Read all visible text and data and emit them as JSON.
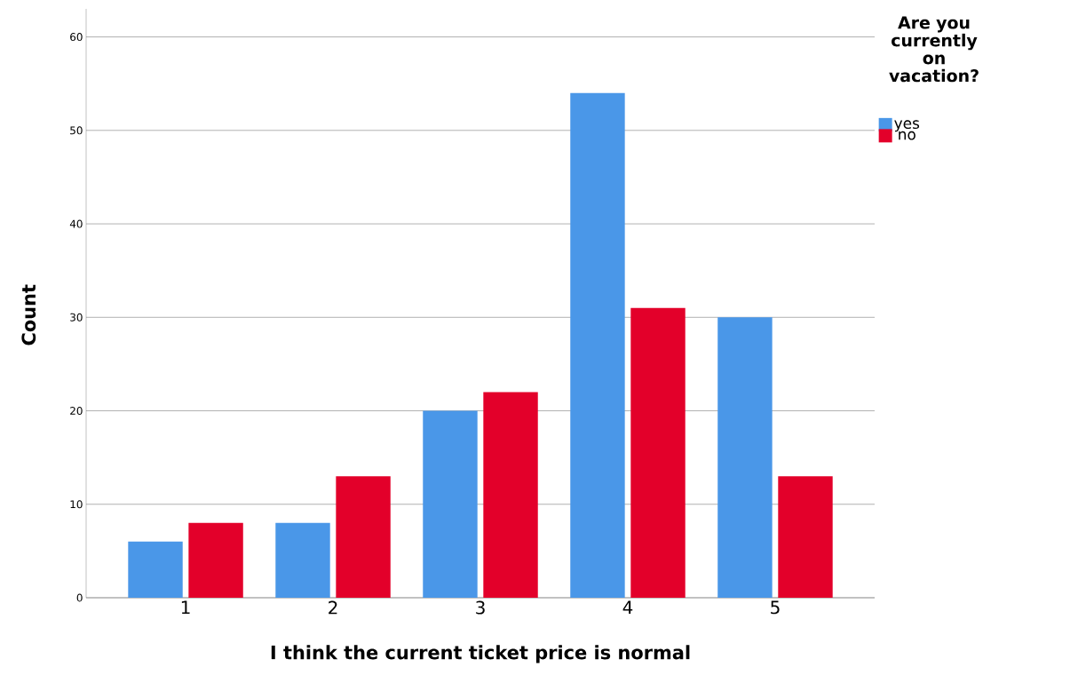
{
  "chart_data": {
    "type": "bar",
    "xlabel": "I think the current ticket price is normal",
    "ylabel": "Count",
    "legend_title": "Are you currently on vacation?",
    "categories": [
      "1",
      "2",
      "3",
      "4",
      "5"
    ],
    "series": [
      {
        "name": "yes",
        "color": "#4a97e8",
        "values": [
          6,
          8,
          20,
          54,
          30
        ]
      },
      {
        "name": "no",
        "color": "#e3002a",
        "values": [
          8,
          13,
          22,
          31,
          13
        ]
      }
    ],
    "ylim": [
      0,
      63
    ],
    "yticks": [
      0,
      10,
      20,
      30,
      40,
      50,
      60
    ],
    "grid": "y",
    "legend": "top right"
  }
}
